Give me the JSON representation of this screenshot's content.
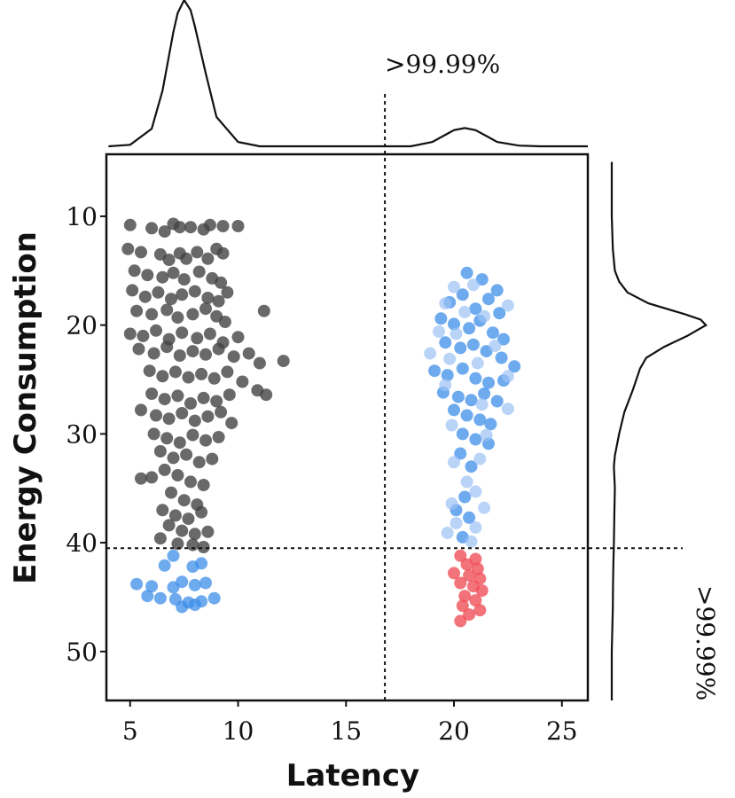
{
  "chart_data": {
    "type": "scatter",
    "title": "",
    "xlabel": "Latency",
    "ylabel": "Energy Consumption",
    "xlim": [
      3.9,
      26.2
    ],
    "ylim": [
      54.5,
      4.3
    ],
    "y_inverted": true,
    "x_ticks": [
      5,
      10,
      15,
      20,
      25
    ],
    "y_ticks": [
      10,
      20,
      30,
      40,
      50
    ],
    "thresholds": {
      "latency": 16.8,
      "energy": 40.5
    },
    "annotations": {
      "latency_threshold": ">99.99%",
      "energy_threshold": ">99.99%"
    },
    "colors": {
      "normal": "#444444",
      "latency_outlier": "#3d8ee8",
      "latency_outlier_light": "#9cc2f5",
      "double_outlier": "#f04b55"
    },
    "marginal_x": {
      "x": [
        4,
        5,
        6,
        6.5,
        7,
        7.2,
        7.5,
        7.8,
        8,
        8.5,
        9,
        10,
        11,
        13,
        16,
        18,
        19,
        19.5,
        20,
        20.5,
        21,
        21.5,
        22,
        23,
        24,
        26.2
      ],
      "density": [
        0.0,
        0.01,
        0.12,
        0.38,
        0.78,
        0.91,
        1.0,
        0.93,
        0.82,
        0.5,
        0.2,
        0.03,
        0.0,
        0.0,
        0.0,
        0.0,
        0.03,
        0.07,
        0.11,
        0.125,
        0.11,
        0.07,
        0.03,
        0.005,
        0.0,
        0.0
      ]
    },
    "marginal_y": {
      "y": [
        5,
        10,
        13,
        15,
        16,
        17,
        18,
        19,
        19.5,
        20,
        21,
        22,
        23,
        24,
        26,
        28,
        30,
        32,
        33,
        35,
        37,
        40,
        42,
        44,
        46,
        48,
        50,
        54.5
      ],
      "density": [
        0.0,
        0.0,
        0.01,
        0.03,
        0.07,
        0.15,
        0.35,
        0.7,
        0.85,
        0.9,
        0.72,
        0.5,
        0.33,
        0.27,
        0.2,
        0.12,
        0.07,
        0.03,
        0.02,
        0.03,
        0.025,
        0.02,
        0.015,
        0.012,
        0.01,
        0.005,
        0.0,
        0.0
      ]
    },
    "series": [
      {
        "name": "normal",
        "color": "#444444",
        "opacity": 0.8,
        "points": [
          [
            5,
            10.8
          ],
          [
            6,
            11.1
          ],
          [
            6.6,
            11.4
          ],
          [
            7,
            10.7
          ],
          [
            7.3,
            11.0
          ],
          [
            7.8,
            11.0
          ],
          [
            8.4,
            11.2
          ],
          [
            8.7,
            10.8
          ],
          [
            9.3,
            10.9
          ],
          [
            10,
            10.9
          ],
          [
            4.9,
            13.0
          ],
          [
            5.5,
            13.3
          ],
          [
            6.4,
            13.5
          ],
          [
            6.8,
            14.0
          ],
          [
            7.3,
            13.4
          ],
          [
            7.6,
            13.9
          ],
          [
            8.1,
            13.3
          ],
          [
            8.6,
            13.9
          ],
          [
            9.0,
            13.0
          ],
          [
            9.3,
            13.4
          ],
          [
            5.2,
            15.0
          ],
          [
            5.8,
            15.4
          ],
          [
            6.5,
            15.6
          ],
          [
            7.0,
            15.2
          ],
          [
            7.5,
            15.8
          ],
          [
            8.2,
            15.1
          ],
          [
            8.8,
            15.7
          ],
          [
            9.2,
            16.1
          ],
          [
            5.1,
            16.8
          ],
          [
            5.7,
            17.4
          ],
          [
            6.3,
            17.0
          ],
          [
            6.9,
            17.6
          ],
          [
            7.4,
            17.2
          ],
          [
            8.0,
            16.9
          ],
          [
            8.6,
            17.5
          ],
          [
            9.1,
            17.8
          ],
          [
            9.5,
            17.0
          ],
          [
            5.3,
            18.7
          ],
          [
            6.0,
            19.0
          ],
          [
            6.7,
            18.6
          ],
          [
            7.2,
            19.3
          ],
          [
            7.9,
            19.0
          ],
          [
            8.5,
            18.5
          ],
          [
            9.0,
            19.2
          ],
          [
            9.4,
            19.7
          ],
          [
            11.2,
            18.7
          ],
          [
            5.0,
            20.8
          ],
          [
            5.6,
            21.0
          ],
          [
            6.2,
            20.5
          ],
          [
            6.8,
            21.3
          ],
          [
            7.4,
            20.7
          ],
          [
            8.1,
            21.2
          ],
          [
            8.7,
            20.8
          ],
          [
            9.3,
            21.6
          ],
          [
            10.0,
            21.1
          ],
          [
            5.4,
            22.2
          ],
          [
            6.1,
            22.6
          ],
          [
            6.7,
            22.0
          ],
          [
            7.3,
            22.8
          ],
          [
            7.9,
            22.4
          ],
          [
            8.5,
            22.7
          ],
          [
            9.1,
            22.2
          ],
          [
            9.8,
            22.9
          ],
          [
            10.5,
            22.6
          ],
          [
            11.0,
            23.5
          ],
          [
            12.1,
            23.3
          ],
          [
            5.9,
            24.2
          ],
          [
            6.5,
            24.7
          ],
          [
            7.1,
            24.3
          ],
          [
            7.7,
            24.8
          ],
          [
            8.3,
            24.5
          ],
          [
            8.9,
            24.9
          ],
          [
            9.5,
            24.3
          ],
          [
            10.2,
            25.2
          ],
          [
            10.9,
            26.0
          ],
          [
            6.0,
            26.3
          ],
          [
            6.6,
            26.8
          ],
          [
            7.2,
            26.5
          ],
          [
            7.8,
            27.2
          ],
          [
            8.4,
            26.7
          ],
          [
            9.0,
            27.0
          ],
          [
            9.6,
            26.4
          ],
          [
            11.3,
            26.4
          ],
          [
            5.5,
            27.8
          ],
          [
            6.2,
            28.3
          ],
          [
            6.8,
            28.6
          ],
          [
            7.4,
            28.1
          ],
          [
            8.0,
            28.8
          ],
          [
            8.6,
            28.4
          ],
          [
            9.2,
            28.0
          ],
          [
            9.7,
            29.0
          ],
          [
            6.1,
            30.0
          ],
          [
            6.7,
            30.4
          ],
          [
            7.3,
            30.8
          ],
          [
            7.9,
            30.1
          ],
          [
            8.5,
            30.6
          ],
          [
            9.1,
            30.3
          ],
          [
            6.4,
            31.6
          ],
          [
            7.0,
            32.2
          ],
          [
            7.6,
            31.9
          ],
          [
            8.2,
            32.6
          ],
          [
            8.8,
            32.3
          ],
          [
            5.5,
            34.1
          ],
          [
            6.0,
            34.0
          ],
          [
            6.6,
            33.3
          ],
          [
            7.2,
            33.8
          ],
          [
            7.8,
            34.4
          ],
          [
            8.4,
            34.7
          ],
          [
            6.9,
            35.4
          ],
          [
            7.5,
            36.1
          ],
          [
            8.1,
            36.5
          ],
          [
            6.5,
            37.0
          ],
          [
            7.1,
            37.5
          ],
          [
            7.7,
            37.8
          ],
          [
            8.3,
            37.2
          ],
          [
            6.8,
            38.4
          ],
          [
            7.4,
            38.9
          ],
          [
            8.0,
            39.2
          ],
          [
            8.6,
            39.0
          ],
          [
            7.2,
            40.1
          ],
          [
            7.9,
            40.2
          ],
          [
            8.4,
            40.4
          ],
          [
            6.4,
            39.6
          ]
        ]
      },
      {
        "name": "latency_outlier",
        "color": "#3d8ee8",
        "opacity": 0.75,
        "points": [
          [
            20.6,
            15.2
          ],
          [
            21.3,
            15.8
          ],
          [
            22.0,
            16.8
          ],
          [
            19.8,
            17.9
          ],
          [
            20.4,
            17.2
          ],
          [
            21.0,
            18.5
          ],
          [
            21.6,
            17.6
          ],
          [
            22.1,
            18.9
          ],
          [
            19.4,
            19.4
          ],
          [
            20.0,
            19.9
          ],
          [
            20.7,
            20.3
          ],
          [
            21.2,
            19.6
          ],
          [
            21.8,
            20.7
          ],
          [
            22.3,
            21.3
          ],
          [
            19.6,
            21.6
          ],
          [
            20.3,
            22.1
          ],
          [
            20.9,
            21.8
          ],
          [
            21.5,
            22.4
          ],
          [
            22.2,
            23.0
          ],
          [
            22.8,
            23.8
          ],
          [
            19.1,
            24.2
          ],
          [
            19.7,
            24.6
          ],
          [
            20.4,
            24.0
          ],
          [
            21.0,
            24.9
          ],
          [
            21.6,
            25.3
          ],
          [
            22.3,
            25.1
          ],
          [
            19.5,
            26.2
          ],
          [
            20.2,
            26.6
          ],
          [
            20.8,
            26.9
          ],
          [
            21.4,
            26.3
          ],
          [
            22.0,
            27.0
          ],
          [
            20.0,
            27.8
          ],
          [
            20.6,
            28.3
          ],
          [
            21.2,
            28.7
          ],
          [
            21.7,
            29.1
          ],
          [
            20.4,
            30.0
          ],
          [
            21.0,
            30.5
          ],
          [
            21.6,
            30.9
          ],
          [
            20.3,
            31.8
          ],
          [
            20.8,
            33.0
          ],
          [
            20.5,
            35.8
          ],
          [
            20.1,
            37.0
          ],
          [
            20.7,
            37.7
          ],
          [
            20.4,
            39.5
          ],
          [
            7.0,
            41.2
          ],
          [
            6.6,
            42.1
          ],
          [
            7.9,
            42.2
          ],
          [
            8.3,
            41.9
          ],
          [
            5.3,
            43.8
          ],
          [
            6.0,
            44.0
          ],
          [
            7.0,
            44.1
          ],
          [
            7.4,
            43.6
          ],
          [
            8.0,
            43.9
          ],
          [
            8.5,
            43.7
          ],
          [
            5.8,
            44.9
          ],
          [
            6.4,
            45.1
          ],
          [
            7.1,
            45.2
          ],
          [
            7.7,
            45.5
          ],
          [
            8.3,
            45.4
          ],
          [
            8.9,
            45.1
          ],
          [
            7.4,
            45.9
          ],
          [
            8.0,
            45.7
          ]
        ]
      },
      {
        "name": "latency_outlier_light",
        "color": "#9cc2f5",
        "opacity": 0.7,
        "points": [
          [
            20.0,
            16.5
          ],
          [
            20.9,
            16.3
          ],
          [
            19.6,
            18.0
          ],
          [
            20.5,
            18.8
          ],
          [
            21.4,
            19.2
          ],
          [
            22.5,
            18.2
          ],
          [
            19.3,
            20.6
          ],
          [
            20.1,
            20.8
          ],
          [
            21.9,
            21.9
          ],
          [
            18.9,
            22.6
          ],
          [
            19.8,
            23.1
          ],
          [
            21.1,
            23.5
          ],
          [
            22.5,
            24.7
          ],
          [
            19.6,
            25.5
          ],
          [
            21.3,
            27.3
          ],
          [
            22.5,
            27.7
          ],
          [
            19.9,
            29.2
          ],
          [
            21.5,
            30.1
          ],
          [
            20.0,
            32.6
          ],
          [
            21.2,
            32.3
          ],
          [
            20.6,
            34.4
          ],
          [
            21.0,
            35.3
          ],
          [
            19.9,
            36.4
          ],
          [
            21.4,
            36.8
          ],
          [
            20.1,
            38.2
          ],
          [
            21.0,
            38.6
          ],
          [
            19.7,
            39.1
          ],
          [
            20.8,
            39.9
          ]
        ]
      },
      {
        "name": "double_outlier",
        "color": "#f04b55",
        "opacity": 0.78,
        "points": [
          [
            20.3,
            41.2
          ],
          [
            21.0,
            41.5
          ],
          [
            20.6,
            42.0
          ],
          [
            21.1,
            42.4
          ],
          [
            20.0,
            42.8
          ],
          [
            20.7,
            43.0
          ],
          [
            21.2,
            43.3
          ],
          [
            20.3,
            43.7
          ],
          [
            20.9,
            44.0
          ],
          [
            21.3,
            44.4
          ],
          [
            20.5,
            44.9
          ],
          [
            21.0,
            45.3
          ],
          [
            20.4,
            45.8
          ],
          [
            21.2,
            46.2
          ],
          [
            20.7,
            46.6
          ],
          [
            20.3,
            47.2
          ]
        ]
      }
    ]
  }
}
